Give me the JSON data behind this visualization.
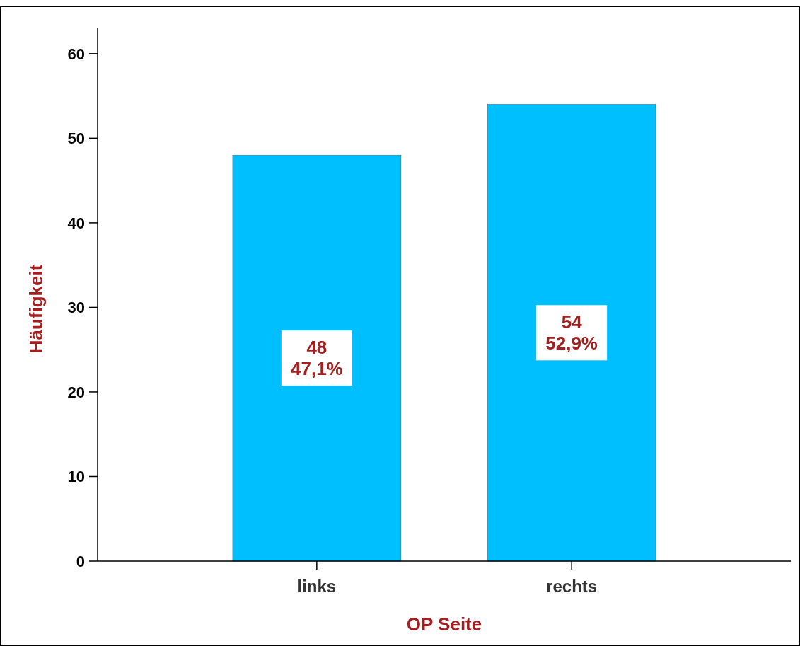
{
  "chart_data": {
    "type": "bar",
    "xlabel": "OP Seite",
    "ylabel": "Häufigkeit",
    "categories": [
      "links",
      "rechts"
    ],
    "values": [
      48,
      54
    ],
    "color": "#00bfff",
    "value_labels": [
      "48\n47,1%",
      "54\n52,9%"
    ],
    "ylim": [
      0,
      63
    ],
    "yticks": [
      0,
      10,
      20,
      30,
      40,
      50,
      60
    ],
    "grid": false
  }
}
